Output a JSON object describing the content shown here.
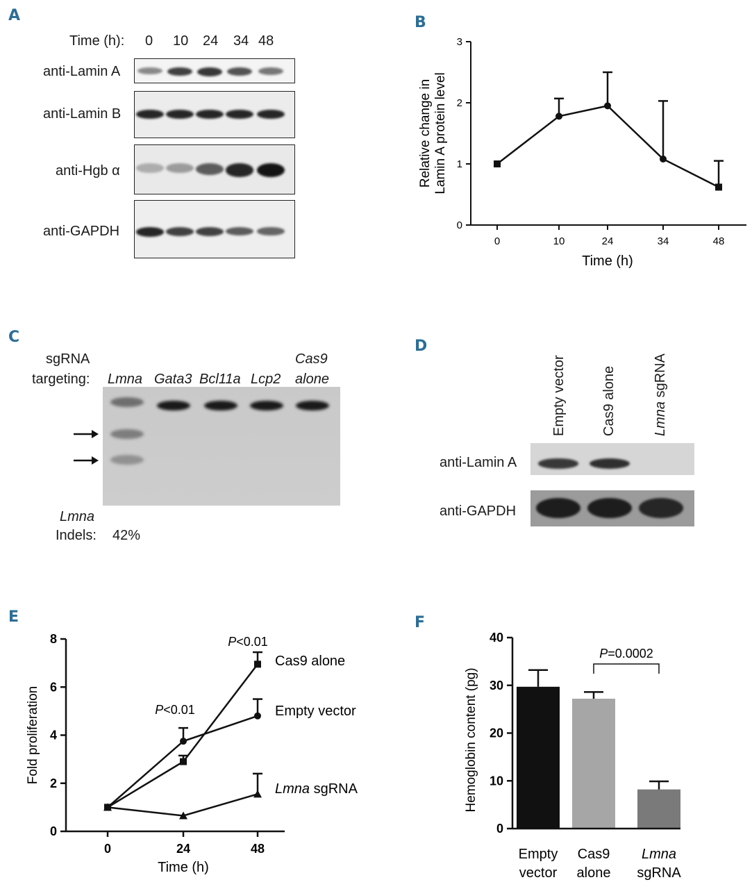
{
  "panels": {
    "A": {
      "letter": "A",
      "time_label": "Time (h):",
      "time_points": [
        "0",
        "10",
        "24",
        "34",
        "48"
      ],
      "blots": [
        {
          "label": "anti-Lamin A",
          "intensity": [
            0.35,
            0.75,
            0.8,
            0.65,
            0.45
          ]
        },
        {
          "label": "anti-Lamin B",
          "intensity": [
            0.9,
            0.9,
            0.9,
            0.9,
            0.9
          ]
        },
        {
          "label": "anti-Hgb α",
          "intensity": [
            0.15,
            0.25,
            0.6,
            0.9,
            1.0
          ]
        },
        {
          "label": "anti-GAPDH",
          "intensity": [
            0.9,
            0.75,
            0.75,
            0.6,
            0.55
          ]
        }
      ]
    },
    "B": {
      "letter": "B",
      "chart_data": {
        "type": "line",
        "x": [
          0,
          10,
          24,
          34,
          48
        ],
        "x_tick_labels": [
          "0",
          "10",
          "24",
          "34",
          "48"
        ],
        "y": [
          1.0,
          1.78,
          1.95,
          1.08,
          0.62
        ],
        "error_upper": [
          1.0,
          2.07,
          2.5,
          2.03,
          1.05
        ],
        "markers": [
          "square",
          "circle",
          "circle",
          "circle",
          "square"
        ],
        "xlabel": "Time (h)",
        "ylabel_lines": [
          "Relative change in",
          "Lamin A protein level"
        ],
        "ylim": [
          0,
          3
        ],
        "y_ticks": [
          0,
          1,
          2,
          3
        ]
      }
    },
    "C": {
      "letter": "C",
      "header_lines": [
        "sgRNA",
        "targeting:"
      ],
      "lanes": [
        "Lmna",
        "Gata3",
        "Bcl11a",
        "Lcp2",
        "Cas9\nalone"
      ],
      "lane_line1": [
        "Lmna",
        "Gata3",
        "Bcl11a",
        "Lcp2",
        "Cas9"
      ],
      "lane_line2": [
        "",
        "",
        "",
        "",
        "alone"
      ],
      "footer_gene": "Lmna",
      "footer_label": "Indels:",
      "indel_value": "42%"
    },
    "D": {
      "letter": "D",
      "lanes": [
        "Empty vector",
        "Cas9 alone",
        "Lmna sgRNA"
      ],
      "lane_gene": [
        "",
        "",
        "Lmna"
      ],
      "lane_rest": [
        "Empty vector",
        "Cas9 alone",
        " sgRNA"
      ],
      "blots": [
        {
          "label": "anti-Lamin A",
          "intensity": [
            0.8,
            0.85,
            0.0
          ]
        },
        {
          "label": "anti-GAPDH",
          "intensity": [
            0.95,
            0.95,
            0.9
          ]
        }
      ]
    },
    "E": {
      "letter": "E",
      "chart_data": {
        "type": "line",
        "x": [
          0,
          24,
          48
        ],
        "x_tick_labels": [
          "0",
          "24",
          "48"
        ],
        "series": [
          {
            "name": "Cas9 alone",
            "marker": "square",
            "values": [
              1.0,
              2.9,
              6.95
            ],
            "error_upper": [
              1.0,
              3.15,
              7.45
            ]
          },
          {
            "name": "Empty vector",
            "marker": "circle",
            "values": [
              1.0,
              3.75,
              4.8
            ],
            "error_upper": [
              1.0,
              4.3,
              5.5
            ]
          },
          {
            "name": "Lmna sgRNA",
            "marker": "triangle",
            "values": [
              1.0,
              0.65,
              1.55
            ],
            "error_upper": [
              1.0,
              0.65,
              2.4
            ]
          }
        ],
        "legend_gene_part": "Lmna",
        "legend_rest": " sgRNA",
        "annotations": [
          {
            "italic": "P",
            "text": "<0.01",
            "x": 24
          },
          {
            "italic": "P",
            "text": "<0.01",
            "x": 48
          }
        ],
        "xlabel": "Time (h)",
        "ylabel": "Fold proliferation",
        "ylim": [
          0,
          8
        ],
        "y_ticks": [
          0,
          2,
          4,
          6,
          8
        ]
      }
    },
    "F": {
      "letter": "F",
      "chart_data": {
        "type": "bar",
        "categories": [
          "Empty vector",
          "Cas9 alone",
          "Lmna sgRNA"
        ],
        "category_line1": [
          "Empty",
          "Cas9",
          "Lmna"
        ],
        "category_line2": [
          "vector",
          "alone",
          "sgRNA"
        ],
        "values": [
          29.7,
          27.2,
          8.2
        ],
        "error_upper": [
          33.2,
          28.6,
          9.9
        ],
        "colors": [
          "#111111",
          "#a6a6a6",
          "#7a7a7a"
        ],
        "annotation": {
          "italic": "P",
          "text": "=0.0002"
        },
        "ylabel": "Hemoglobin content (pg)",
        "ylim": [
          0,
          40
        ],
        "y_ticks": [
          0,
          10,
          20,
          30,
          40
        ]
      }
    }
  }
}
